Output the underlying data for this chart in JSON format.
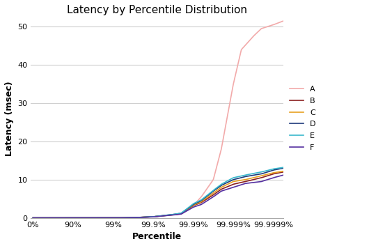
{
  "title": "Latency by Percentile Distribution",
  "xlabel": "Percentile",
  "ylabel": "Latency (msec)",
  "x_tick_labels": [
    "0%",
    "90%",
    "99%",
    "99.9%",
    "99.99%",
    "99.999%",
    "99.9999%"
  ],
  "x_tick_positions": [
    0,
    1,
    2,
    3,
    4,
    5,
    6
  ],
  "ylim": [
    0,
    52
  ],
  "yticks": [
    0,
    10,
    20,
    30,
    40,
    50
  ],
  "xlim": [
    -0.05,
    6.25
  ],
  "background_color": "#ffffff",
  "grid_color": "#d0d0d0",
  "series": [
    {
      "label": "A",
      "color": "#f2aaaa",
      "linewidth": 1.2,
      "x": [
        0,
        1,
        2,
        2.5,
        3.0,
        3.3,
        3.5,
        3.7,
        4.0,
        4.2,
        4.5,
        4.7,
        5.0,
        5.2,
        5.5,
        5.7,
        6.0,
        6.25
      ],
      "y": [
        0,
        0,
        0,
        0.05,
        0.3,
        0.6,
        0.8,
        1.0,
        3.2,
        5.5,
        10.0,
        18.0,
        35.0,
        44.0,
        47.5,
        49.5,
        50.5,
        51.5
      ]
    },
    {
      "label": "B",
      "color": "#8b2020",
      "linewidth": 1.2,
      "x": [
        0,
        1,
        2,
        2.5,
        3.0,
        3.3,
        3.5,
        3.7,
        4.0,
        4.2,
        4.5,
        4.7,
        5.0,
        5.3,
        5.7,
        6.0,
        6.25
      ],
      "y": [
        0,
        0,
        0,
        0.05,
        0.3,
        0.6,
        0.8,
        1.1,
        3.2,
        4.0,
        6.0,
        7.5,
        8.8,
        9.5,
        10.5,
        11.5,
        12.0
      ]
    },
    {
      "label": "C",
      "color": "#e8a020",
      "linewidth": 1.2,
      "x": [
        0,
        1,
        2,
        2.5,
        3.0,
        3.3,
        3.5,
        3.7,
        4.0,
        4.2,
        4.5,
        4.7,
        5.0,
        5.3,
        5.7,
        6.0,
        6.25
      ],
      "y": [
        0,
        0,
        0,
        0.05,
        0.3,
        0.6,
        0.85,
        1.1,
        3.3,
        4.2,
        6.5,
        8.0,
        9.5,
        10.0,
        11.0,
        11.8,
        12.2
      ]
    },
    {
      "label": "D",
      "color": "#1e3a7a",
      "linewidth": 1.2,
      "x": [
        0,
        1,
        2,
        2.5,
        3.0,
        3.3,
        3.5,
        3.7,
        4.0,
        4.2,
        4.5,
        4.7,
        5.0,
        5.3,
        5.7,
        6.0,
        6.25
      ],
      "y": [
        0,
        0,
        0,
        0.05,
        0.3,
        0.65,
        0.9,
        1.2,
        3.5,
        4.5,
        7.0,
        8.5,
        10.0,
        10.8,
        11.5,
        12.5,
        13.0
      ]
    },
    {
      "label": "E",
      "color": "#38b8cc",
      "linewidth": 1.2,
      "x": [
        0,
        1,
        2,
        2.5,
        3.0,
        3.3,
        3.5,
        3.7,
        4.0,
        4.2,
        4.5,
        4.7,
        5.0,
        5.3,
        5.7,
        6.0,
        6.25
      ],
      "y": [
        0,
        0,
        0,
        0.05,
        0.3,
        0.65,
        0.9,
        1.25,
        3.7,
        4.7,
        7.2,
        8.8,
        10.5,
        11.2,
        12.0,
        12.8,
        13.2
      ]
    },
    {
      "label": "F",
      "color": "#5530a0",
      "linewidth": 1.2,
      "x": [
        0,
        1,
        2,
        2.5,
        3.0,
        3.3,
        3.5,
        3.7,
        4.0,
        4.2,
        4.5,
        4.7,
        5.0,
        5.3,
        5.7,
        6.0,
        6.25
      ],
      "y": [
        0,
        0,
        0,
        0.05,
        0.25,
        0.55,
        0.75,
        1.0,
        2.8,
        3.5,
        5.5,
        7.0,
        8.0,
        9.0,
        9.5,
        10.5,
        11.2
      ]
    }
  ],
  "title_fontsize": 11,
  "label_fontsize": 9,
  "tick_fontsize": 8,
  "legend_fontsize": 8
}
